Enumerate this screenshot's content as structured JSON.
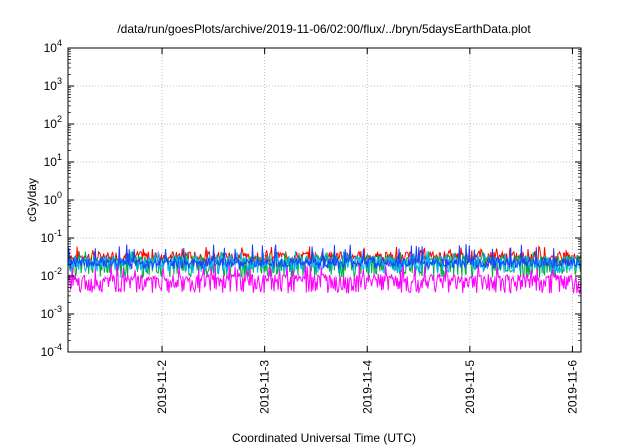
{
  "chart_data": {
    "type": "line",
    "title": "/data/run/goesPlots/archive/2019-11-06/02:00/flux/../bryn/5daysEarthData.plot",
    "xlabel": "Coordinated Universal Time (UTC)",
    "ylabel": "cGy/day",
    "yscale": "log",
    "ylim": [
      0.0001,
      10000
    ],
    "y_ticks": [
      {
        "base": "10",
        "exp": "-4"
      },
      {
        "base": "10",
        "exp": "-3"
      },
      {
        "base": "10",
        "exp": "-2"
      },
      {
        "base": "10",
        "exp": "-1"
      },
      {
        "base": "10",
        "exp": "0"
      },
      {
        "base": "10",
        "exp": "1"
      },
      {
        "base": "10",
        "exp": "2"
      },
      {
        "base": "10",
        "exp": "3"
      },
      {
        "base": "10",
        "exp": "4"
      }
    ],
    "xlim": [
      "2019-11-01T02:00",
      "2019-11-06T02:00"
    ],
    "x_ticks": [
      "2019-11-2",
      "2019-11-3",
      "2019-11-4",
      "2019-11-5",
      "2019-11-6"
    ],
    "grid": true,
    "legend": "none",
    "series": [
      {
        "color": "#ff0000",
        "mean": 0.035,
        "low": 0.02,
        "high": 0.06
      },
      {
        "color": "#00aa44",
        "mean": 0.028,
        "low": 0.009,
        "high": 0.045
      },
      {
        "color": "#00b3ff",
        "mean": 0.026,
        "low": 0.012,
        "high": 0.045
      },
      {
        "color": "#1a3dff",
        "mean": 0.024,
        "low": 0.015,
        "high": 0.07
      },
      {
        "color": "#ff00ff",
        "mean": 0.009,
        "low": 0.0035,
        "high": 0.02
      }
    ]
  }
}
